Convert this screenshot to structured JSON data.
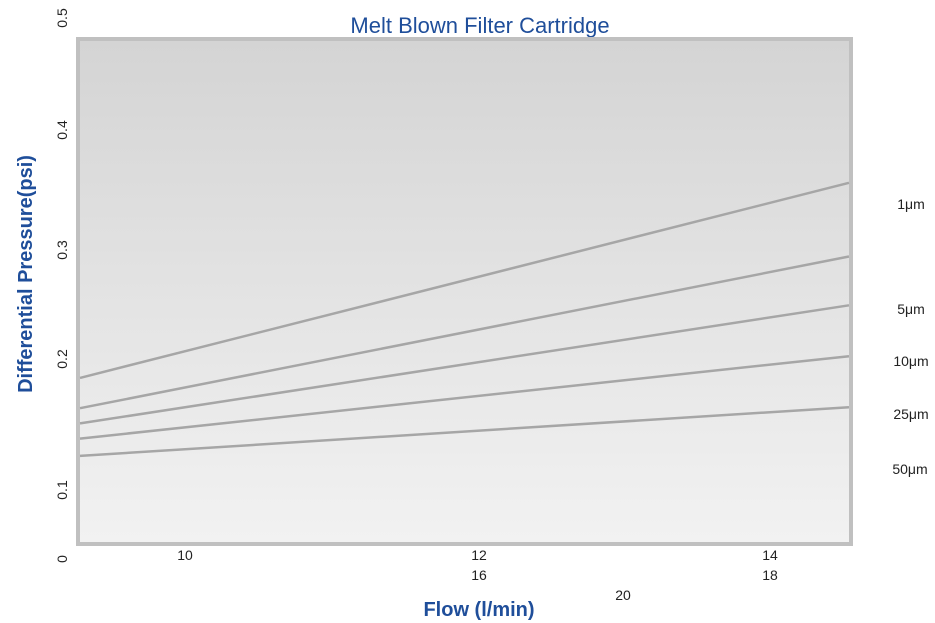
{
  "chart_data": {
    "type": "line",
    "title": "Melt Blown Filter Cartridge",
    "xlabel": "Flow (l/min)",
    "ylabel": "Differential Pressure(psi)",
    "ylim": [
      0,
      0.5
    ],
    "y_ticks": [
      "0",
      "0.1",
      "0.2",
      "0.3",
      "0.4",
      "0.5"
    ],
    "x_ticks": [
      "10",
      "12",
      "14",
      "16",
      "18",
      "20"
    ],
    "grid": false,
    "legend": "right-inline",
    "series": [
      {
        "name": "1μm",
        "x": [
          8.1,
          14.5
        ],
        "y": [
          0.168,
          0.348
        ]
      },
      {
        "name": "5μm",
        "x": [
          8.1,
          14.5
        ],
        "y": [
          0.14,
          0.28
        ]
      },
      {
        "name": "10μm",
        "x": [
          8.1,
          14.5
        ],
        "y": [
          0.126,
          0.235
        ]
      },
      {
        "name": "25μm",
        "x": [
          8.1,
          14.5
        ],
        "y": [
          0.112,
          0.188
        ]
      },
      {
        "name": "50μm",
        "x": [
          8.1,
          14.5
        ],
        "y": [
          0.096,
          0.141
        ]
      }
    ],
    "colors": {
      "line": "#a6a6a6",
      "frame": "#c0c0c0",
      "plot_bg_top": "#d4d4d4",
      "plot_bg_bottom": "#f2f2f2",
      "title": "#1f4e9a",
      "axis_title": "#1f4e9a"
    }
  }
}
